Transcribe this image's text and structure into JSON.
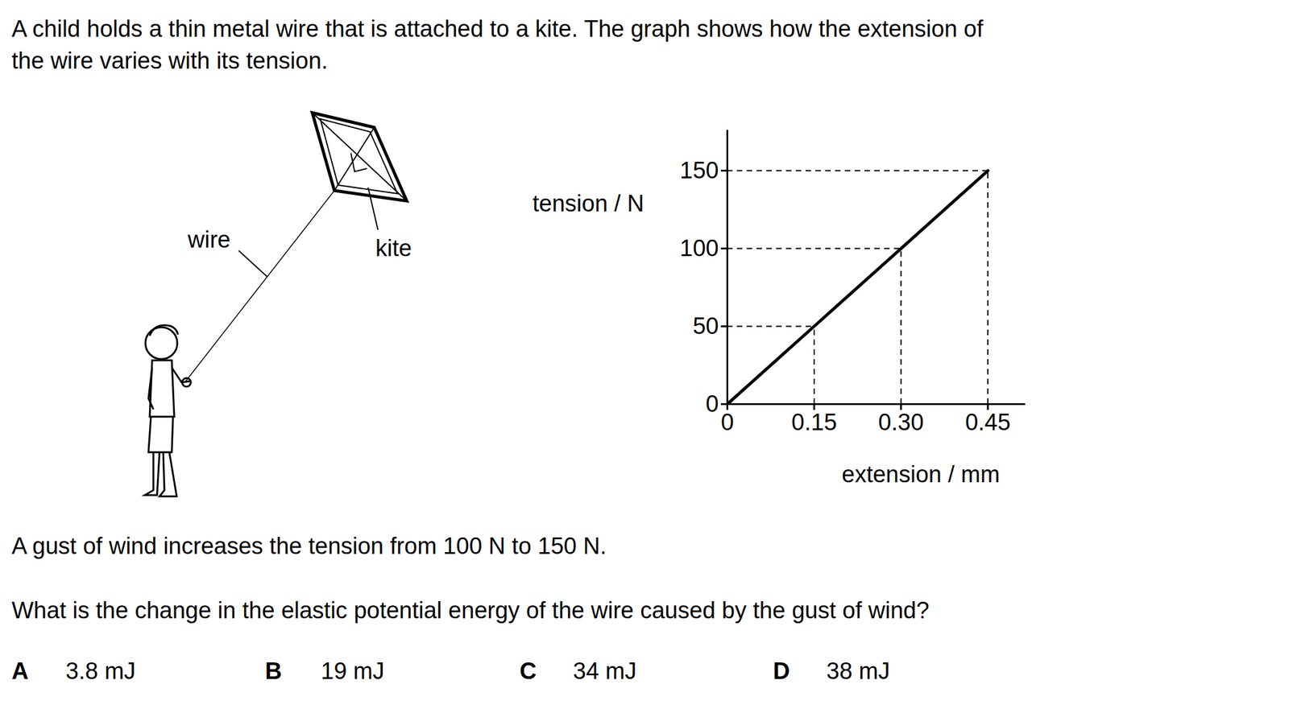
{
  "question": {
    "intro_lines": [
      "A child holds a thin metal wire that is attached to a kite. The graph shows how the extension of",
      "the wire varies with its tension."
    ],
    "statement": "A gust of wind increases the tension from 100 N to 150 N.",
    "prompt": "What is the change in the elastic potential energy of the wire caused by the gust of wind?",
    "options": [
      {
        "letter": "A",
        "text": "3.8 mJ"
      },
      {
        "letter": "B",
        "text": "19 mJ"
      },
      {
        "letter": "C",
        "text": "34 mJ"
      },
      {
        "letter": "D",
        "text": "38 mJ"
      }
    ]
  },
  "diagram": {
    "labels": {
      "wire": "wire",
      "kite": "kite"
    }
  },
  "chart_data": {
    "type": "line",
    "x": [
      0,
      0.15,
      0.3,
      0.45
    ],
    "values": [
      0,
      50,
      100,
      150
    ],
    "xlabel": "extension / mm",
    "ylabel": "tension / N",
    "xlim": [
      0,
      0.515
    ],
    "ylim": [
      0,
      176
    ],
    "xticks": [
      0,
      0.15,
      {
        "value": 0.3,
        "label": "0.30"
      },
      0.45
    ],
    "yticks": [
      0,
      50,
      100,
      150
    ],
    "color": "#000000",
    "line_style": "solid",
    "grid": false
  }
}
